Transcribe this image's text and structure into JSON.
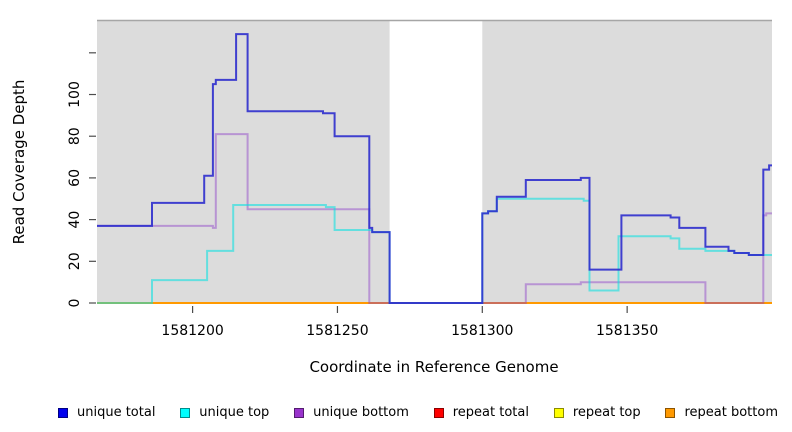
{
  "chart_data": {
    "type": "line",
    "subtype": "step",
    "title": "",
    "xlabel": "Coordinate in Reference Genome",
    "ylabel": "Read Coverage Depth",
    "xlim": [
      1581167,
      1581400
    ],
    "ylim": [
      0,
      135.5
    ],
    "x_ticks": [
      1581200,
      1581250,
      1581300,
      1581350
    ],
    "y_ticks": [
      0,
      20,
      40,
      60,
      80,
      100,
      120
    ],
    "y_max_labeled_tick": 100,
    "grid": "off",
    "legend_position": "bottom",
    "background_color": "#ffffff",
    "band_color": "#dcdcdc",
    "highlight_bands": [
      [
        1581167,
        1581268
      ],
      [
        1581300,
        1581400
      ]
    ],
    "gap_region": [
      1581268,
      1581300
    ],
    "series": [
      {
        "name": "repeat-total",
        "label": "repeat total",
        "legend_color": "#ff0000",
        "line_color": "rgba(204,0,0,0.9)",
        "points": [
          [
            1581167,
            0
          ],
          [
            1581400,
            0
          ]
        ]
      },
      {
        "name": "repeat-top",
        "label": "repeat top",
        "legend_color": "#ffff00",
        "line_color": "rgba(238,238,0,0.9)",
        "points": [
          [
            1581167,
            0
          ],
          [
            1581400,
            0
          ]
        ]
      },
      {
        "name": "repeat-bottom",
        "label": "repeat bottom",
        "legend_color": "#ff9900",
        "line_color": "rgba(255,153,0,1)",
        "points": [
          [
            1581167,
            0
          ],
          [
            1581400,
            0
          ]
        ]
      },
      {
        "name": "unique-bottom",
        "label": "unique bottom",
        "legend_color": "#9933cc",
        "line_color": "rgba(140,60,200,0.45)",
        "points": [
          [
            1581167,
            37
          ],
          [
            1581207,
            36
          ],
          [
            1581208,
            81
          ],
          [
            1581219,
            45
          ],
          [
            1581261,
            0
          ],
          [
            1581315,
            9
          ],
          [
            1581334,
            10
          ],
          [
            1581377,
            0
          ],
          [
            1581397,
            42
          ],
          [
            1581398,
            43
          ],
          [
            1581400,
            43
          ]
        ]
      },
      {
        "name": "unique-top",
        "label": "unique top",
        "legend_color": "#00ffff",
        "line_color": "rgba(0,225,225,0.55)",
        "points": [
          [
            1581167,
            0
          ],
          [
            1581186,
            11
          ],
          [
            1581205,
            25
          ],
          [
            1581214,
            47
          ],
          [
            1581246,
            46
          ],
          [
            1581249,
            35
          ],
          [
            1581262,
            34
          ],
          [
            1581268,
            0
          ],
          [
            1581300,
            43
          ],
          [
            1581302,
            44
          ],
          [
            1581305,
            50
          ],
          [
            1581335,
            49
          ],
          [
            1581337,
            6
          ],
          [
            1581347,
            32
          ],
          [
            1581365,
            31
          ],
          [
            1581368,
            26
          ],
          [
            1581377,
            25
          ],
          [
            1581387,
            24
          ],
          [
            1581392,
            23
          ],
          [
            1581400,
            23
          ]
        ]
      },
      {
        "name": "unique-total",
        "label": "unique total",
        "legend_color": "#0000ee",
        "line_color": "rgba(45,45,205,0.9)",
        "points": [
          [
            1581167,
            37
          ],
          [
            1581186,
            48
          ],
          [
            1581204,
            61
          ],
          [
            1581207,
            105
          ],
          [
            1581208,
            107
          ],
          [
            1581215,
            129
          ],
          [
            1581219,
            92
          ],
          [
            1581245,
            91
          ],
          [
            1581249,
            80
          ],
          [
            1581261,
            36
          ],
          [
            1581262,
            34
          ],
          [
            1581268,
            0
          ],
          [
            1581300,
            43
          ],
          [
            1581302,
            44
          ],
          [
            1581305,
            51
          ],
          [
            1581315,
            59
          ],
          [
            1581334,
            60
          ],
          [
            1581337,
            16
          ],
          [
            1581348,
            42
          ],
          [
            1581365,
            41
          ],
          [
            1581368,
            36
          ],
          [
            1581377,
            27
          ],
          [
            1581385,
            25
          ],
          [
            1581387,
            24
          ],
          [
            1581392,
            23
          ],
          [
            1581397,
            64
          ],
          [
            1581399,
            66
          ],
          [
            1581400,
            66
          ]
        ]
      }
    ]
  },
  "legend": {
    "items": [
      {
        "label": "unique total",
        "color": "#0000ee"
      },
      {
        "label": "unique top",
        "color": "#00ffff"
      },
      {
        "label": "unique bottom",
        "color": "#9933cc"
      },
      {
        "label": "repeat total",
        "color": "#ff0000"
      },
      {
        "label": "repeat top",
        "color": "#ffff00"
      },
      {
        "label": "repeat bottom",
        "color": "#ff9900"
      }
    ]
  }
}
